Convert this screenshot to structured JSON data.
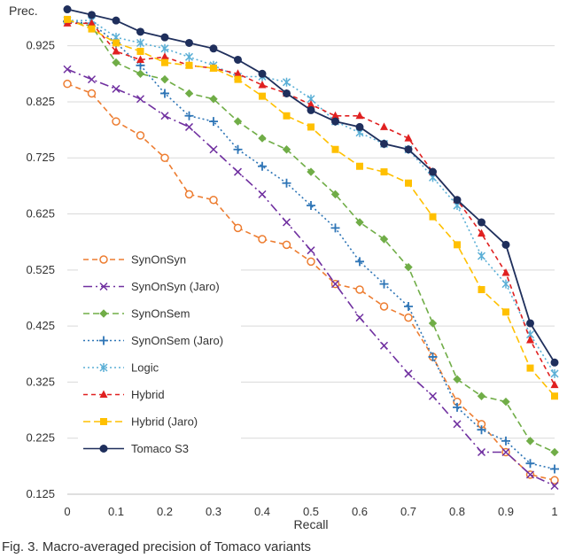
{
  "chart_data": {
    "type": "line",
    "ylabel": "Prec.",
    "xlabel": "Recall",
    "xlim": [
      0,
      1
    ],
    "ylim": [
      0.125,
      0.975
    ],
    "x_ticks": [
      "0",
      "0.1",
      "0.2",
      "0.3",
      "0.4",
      "0.5",
      "0.6",
      "0.7",
      "0.8",
      "0.9",
      "1"
    ],
    "y_ticks": [
      "0.125",
      "0.225",
      "0.325",
      "0.425",
      "0.525",
      "0.625",
      "0.725",
      "0.825",
      "0.925"
    ],
    "grid": "horizontal",
    "legend_placement": "left-middle",
    "x": [
      0,
      0.05,
      0.1,
      0.15,
      0.2,
      0.25,
      0.3,
      0.35,
      0.4,
      0.45,
      0.5,
      0.55,
      0.6,
      0.65,
      0.7,
      0.75,
      0.8,
      0.85,
      0.9,
      0.95,
      1
    ],
    "series": [
      {
        "name": "SynOnSyn",
        "color": "#ed7d31",
        "dash": "6,4",
        "marker": "circle-open",
        "values": [
          0.857,
          0.84,
          0.79,
          0.765,
          0.725,
          0.66,
          0.65,
          0.6,
          0.58,
          0.57,
          0.54,
          0.5,
          0.49,
          0.46,
          0.44,
          0.37,
          0.29,
          0.25,
          0.2,
          0.16,
          0.15
        ]
      },
      {
        "name": "SynOnSyn (Jaro)",
        "color": "#7030a0",
        "dash": "10,4,2,4",
        "marker": "x",
        "values": [
          0.883,
          0.865,
          0.848,
          0.83,
          0.8,
          0.78,
          0.74,
          0.7,
          0.66,
          0.61,
          0.56,
          0.5,
          0.44,
          0.39,
          0.34,
          0.3,
          0.25,
          0.2,
          0.2,
          0.16,
          0.14
        ]
      },
      {
        "name": "SynOnSem",
        "color": "#70ad47",
        "dash": "7,4",
        "marker": "diamond",
        "values": [
          0.97,
          0.96,
          0.895,
          0.875,
          0.865,
          0.84,
          0.83,
          0.79,
          0.76,
          0.74,
          0.7,
          0.66,
          0.61,
          0.58,
          0.53,
          0.43,
          0.33,
          0.3,
          0.29,
          0.22,
          0.2
        ]
      },
      {
        "name": "SynOnSem (Jaro)",
        "color": "#2e75b6",
        "dash": "2,3",
        "marker": "plus",
        "values": [
          0.968,
          0.965,
          0.93,
          0.89,
          0.84,
          0.8,
          0.79,
          0.74,
          0.71,
          0.68,
          0.64,
          0.6,
          0.54,
          0.5,
          0.46,
          0.37,
          0.28,
          0.24,
          0.22,
          0.18,
          0.17
        ]
      },
      {
        "name": "Logic",
        "color": "#5bafd6",
        "dash": "2,3",
        "marker": "star",
        "values": [
          0.97,
          0.97,
          0.94,
          0.93,
          0.92,
          0.905,
          0.89,
          0.87,
          0.87,
          0.86,
          0.83,
          0.79,
          0.77,
          0.75,
          0.74,
          0.69,
          0.64,
          0.55,
          0.5,
          0.41,
          0.34
        ]
      },
      {
        "name": "Hybrid",
        "color": "#e02020",
        "dash": "5,4",
        "marker": "triangle",
        "values": [
          0.965,
          0.965,
          0.915,
          0.9,
          0.905,
          0.89,
          0.885,
          0.875,
          0.855,
          0.84,
          0.82,
          0.8,
          0.8,
          0.78,
          0.76,
          0.7,
          0.65,
          0.59,
          0.52,
          0.4,
          0.32
        ]
      },
      {
        "name": "Hybrid (Jaro)",
        "color": "#ffc000",
        "dash": "8,4",
        "marker": "square",
        "values": [
          0.972,
          0.955,
          0.93,
          0.915,
          0.895,
          0.89,
          0.885,
          0.865,
          0.835,
          0.8,
          0.78,
          0.74,
          0.71,
          0.7,
          0.68,
          0.62,
          0.57,
          0.49,
          0.45,
          0.35,
          0.3
        ]
      },
      {
        "name": "Tomaco S3",
        "color": "#1f2f5c",
        "dash": "",
        "marker": "circle-filled",
        "values": [
          0.99,
          0.98,
          0.97,
          0.95,
          0.94,
          0.93,
          0.92,
          0.9,
          0.875,
          0.84,
          0.81,
          0.79,
          0.78,
          0.75,
          0.74,
          0.7,
          0.65,
          0.61,
          0.57,
          0.43,
          0.36
        ]
      }
    ]
  },
  "caption": "Fig. 3. Macro-averaged precision of Tomaco variants"
}
